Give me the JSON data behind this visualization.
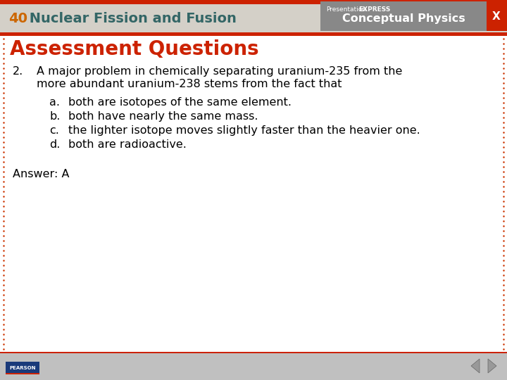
{
  "header_bg_color": "#d4d0c8",
  "header_text_number": "40",
  "header_text_title": " Nuclear Fission and Fusion",
  "header_number_color": "#cc6600",
  "header_title_color": "#336666",
  "top_bar_color": "#cc2200",
  "right_panel_bg": "#888888",
  "x_button_color": "#cc2200",
  "main_bg_color": "#ffffff",
  "border_dot_color": "#cc3300",
  "slide_title": "Assessment Questions",
  "slide_title_color": "#cc2200",
  "question_number": "2.",
  "question_text_line1": "A major problem in chemically separating uranium-235 from the",
  "question_text_line2": "more abundant uranium-238 stems from the fact that",
  "options": [
    [
      "a.",
      "both are isotopes of the same element."
    ],
    [
      "b.",
      "both have nearly the same mass."
    ],
    [
      "c.",
      "the lighter isotope moves slightly faster than the heavier one."
    ],
    [
      "d.",
      "both are radioactive."
    ]
  ],
  "answer_text": "Answer: A",
  "footer_bg_color": "#c0c0c0",
  "text_color": "#000000",
  "font_size_title": 20,
  "font_size_body": 11.5,
  "font_size_header": 12
}
